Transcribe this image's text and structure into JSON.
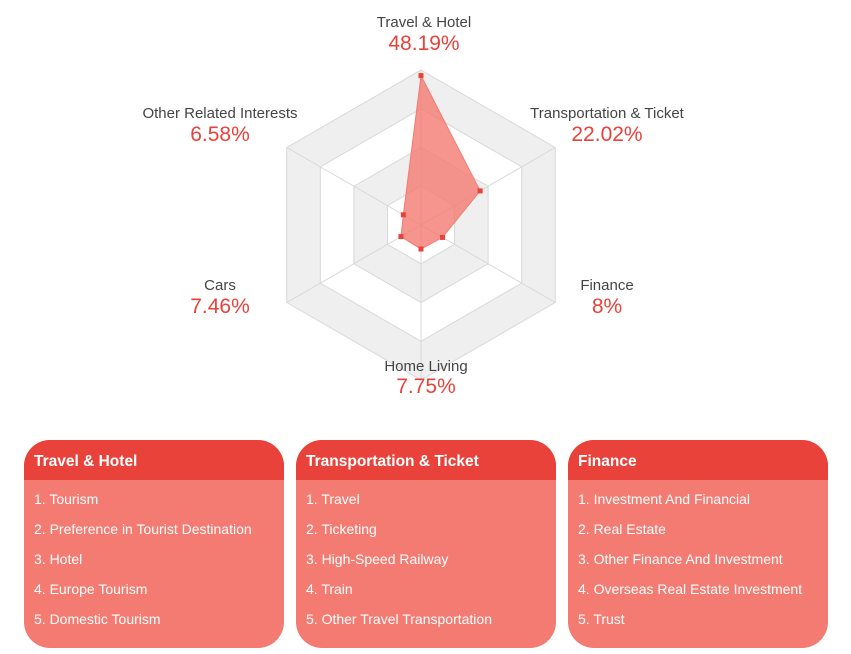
{
  "chart_data": {
    "type": "radar",
    "axes": [
      {
        "label": "Travel & Hotel",
        "value": 48.19,
        "value_text": "48.19%"
      },
      {
        "label": "Transportation & Ticket",
        "value": 22.02,
        "value_text": "22.02%"
      },
      {
        "label": "Finance",
        "value": 8,
        "value_text": "8%"
      },
      {
        "label": "Home Living",
        "value": 7.75,
        "value_text": "7.75%"
      },
      {
        "label": "Cars",
        "value": 7.46,
        "value_text": "7.46%"
      },
      {
        "label": "Other Related Interests",
        "value": 6.58,
        "value_text": "6.58%"
      }
    ],
    "range": [
      0,
      50
    ],
    "rings": 4,
    "series_color": "#f47b71",
    "marker_color": "#e8423b",
    "grid_colors": [
      "#efefef",
      "#ffffff"
    ]
  },
  "cards": [
    {
      "title": "Travel & Hotel",
      "items": [
        "1. Tourism",
        "2. Preference in Tourist Destination",
        "3. Hotel",
        "4. Europe Tourism",
        "5. Domestic Tourism"
      ]
    },
    {
      "title": "Transportation & Ticket",
      "items": [
        "1. Travel",
        "2. Ticketing",
        "3. High-Speed Railway",
        "4. Train",
        "5. Other Travel Transportation"
      ]
    },
    {
      "title": "Finance",
      "items": [
        "1. Investment And Financial",
        "2. Real Estate",
        "3. Other Finance And Investment",
        "4. Overseas Real Estate Investment",
        "5. Trust"
      ]
    }
  ],
  "colors": {
    "accent": "#e8423b",
    "card_body": "#f47b71"
  }
}
